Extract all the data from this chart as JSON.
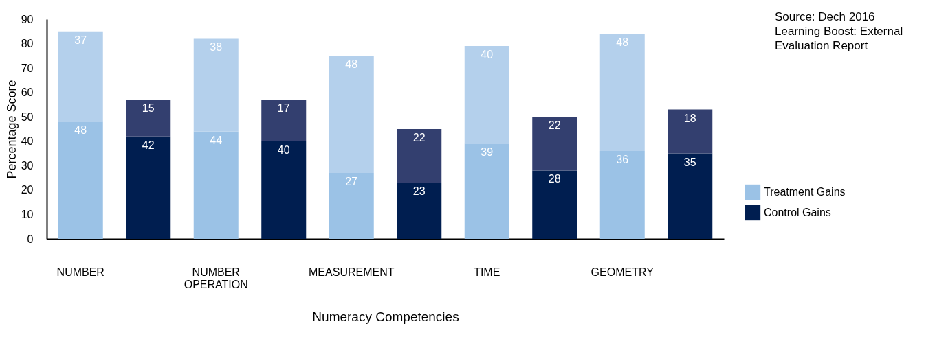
{
  "chart_data": {
    "type": "bar",
    "stacked": true,
    "xlabel": "Numeracy Competencies",
    "ylabel": "Percentage Score",
    "categories": [
      "NUMBER",
      null,
      "NUMBER OPERATION",
      null,
      "MEASUREMENT",
      null,
      "TIME",
      null,
      "GEOMETRY",
      null
    ],
    "series": [
      {
        "name": "Treatment Gains",
        "color": "#9bc2e6",
        "values": [
          48,
          null,
          44,
          null,
          27,
          null,
          39,
          null,
          36,
          null
        ]
      },
      {
        "color": "#b4d0ec",
        "values": [
          37,
          null,
          38,
          null,
          48,
          null,
          40,
          null,
          48,
          null
        ]
      },
      {
        "name": "Control Gains",
        "color": "#001e50",
        "values": [
          null,
          42,
          null,
          40,
          null,
          23,
          null,
          28,
          null,
          35
        ]
      },
      {
        "color": "#333f6f",
        "values": [
          null,
          15,
          null,
          17,
          null,
          22,
          null,
          22,
          null,
          18
        ]
      }
    ],
    "ylim": [
      0,
      90
    ],
    "yticks": [
      0,
      10,
      20,
      30,
      40,
      50,
      60,
      70,
      80,
      90
    ],
    "grid": false,
    "legend": "right",
    "data_labels": true,
    "annotations": [
      "Source: Dech 2016\nLearning Boost: External Evaluation Report"
    ]
  }
}
